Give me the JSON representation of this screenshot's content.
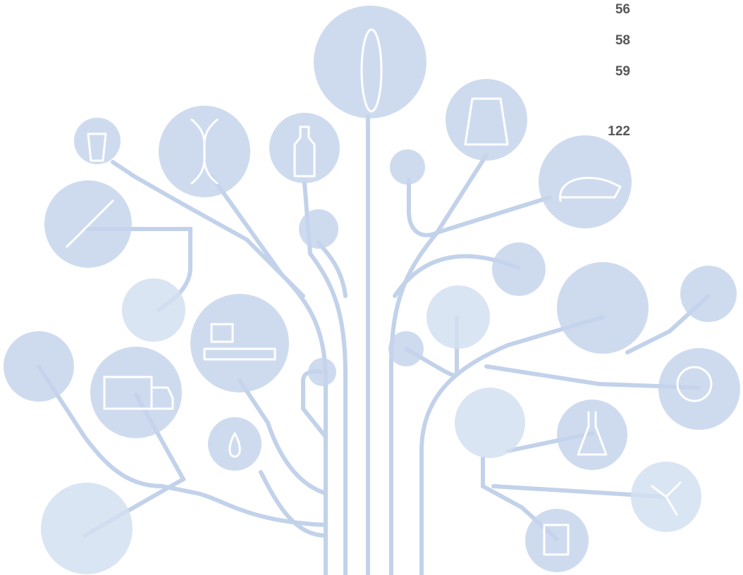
{
  "page_numbers": [
    56,
    58,
    59,
    122
  ]
}
